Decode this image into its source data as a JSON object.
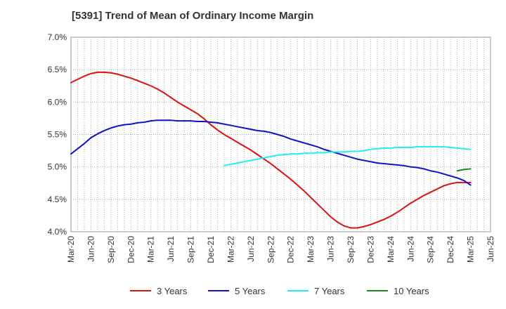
{
  "chart_data": {
    "type": "line",
    "title": "[5391]  Trend of Mean of Ordinary Income Margin",
    "xlabel": "",
    "ylabel": "",
    "x_ticks": [
      "Mar-20",
      "Jun-20",
      "Sep-20",
      "Dec-20",
      "Mar-21",
      "Jun-21",
      "Sep-21",
      "Dec-21",
      "Mar-22",
      "Jun-22",
      "Sep-22",
      "Dec-22",
      "Mar-23",
      "Jun-23",
      "Sep-23",
      "Dec-23",
      "Mar-24",
      "Jun-24",
      "Sep-24",
      "Dec-24",
      "Mar-25",
      "Jun-25"
    ],
    "y_ticks": [
      "4.0%",
      "4.5%",
      "5.0%",
      "5.5%",
      "6.0%",
      "6.5%",
      "7.0%"
    ],
    "ylim": [
      4.0,
      7.0
    ],
    "grid": "dotted",
    "legend_position": "bottom",
    "series": [
      {
        "name": "3 Years",
        "color": "#dd1111",
        "points": [
          [
            "Mar-20",
            6.3
          ],
          [
            "Apr-20",
            6.35
          ],
          [
            "May-20",
            6.4
          ],
          [
            "Jun-20",
            6.44
          ],
          [
            "Jul-20",
            6.46
          ],
          [
            "Aug-20",
            6.46
          ],
          [
            "Sep-20",
            6.45
          ],
          [
            "Oct-20",
            6.43
          ],
          [
            "Nov-20",
            6.4
          ],
          [
            "Dec-20",
            6.37
          ],
          [
            "Jan-21",
            6.33
          ],
          [
            "Feb-21",
            6.29
          ],
          [
            "Mar-21",
            6.25
          ],
          [
            "Apr-21",
            6.2
          ],
          [
            "May-21",
            6.14
          ],
          [
            "Jun-21",
            6.07
          ],
          [
            "Jul-21",
            6.0
          ],
          [
            "Aug-21",
            5.94
          ],
          [
            "Sep-21",
            5.88
          ],
          [
            "Oct-21",
            5.82
          ],
          [
            "Nov-21",
            5.74
          ],
          [
            "Dec-21",
            5.65
          ],
          [
            "Jan-22",
            5.57
          ],
          [
            "Feb-22",
            5.5
          ],
          [
            "Mar-22",
            5.44
          ],
          [
            "Apr-22",
            5.38
          ],
          [
            "May-22",
            5.32
          ],
          [
            "Jun-22",
            5.26
          ],
          [
            "Jul-22",
            5.19
          ],
          [
            "Aug-22",
            5.12
          ],
          [
            "Sep-22",
            5.05
          ],
          [
            "Oct-22",
            4.97
          ],
          [
            "Nov-22",
            4.89
          ],
          [
            "Dec-22",
            4.81
          ],
          [
            "Jan-23",
            4.72
          ],
          [
            "Feb-23",
            4.63
          ],
          [
            "Mar-23",
            4.53
          ],
          [
            "Apr-23",
            4.43
          ],
          [
            "May-23",
            4.33
          ],
          [
            "Jun-23",
            4.23
          ],
          [
            "Jul-23",
            4.15
          ],
          [
            "Aug-23",
            4.09
          ],
          [
            "Sep-23",
            4.06
          ],
          [
            "Oct-23",
            4.06
          ],
          [
            "Nov-23",
            4.08
          ],
          [
            "Dec-23",
            4.11
          ],
          [
            "Jan-24",
            4.15
          ],
          [
            "Feb-24",
            4.19
          ],
          [
            "Mar-24",
            4.24
          ],
          [
            "Apr-24",
            4.3
          ],
          [
            "May-24",
            4.37
          ],
          [
            "Jun-24",
            4.44
          ],
          [
            "Jul-24",
            4.5
          ],
          [
            "Aug-24",
            4.56
          ],
          [
            "Sep-24",
            4.61
          ],
          [
            "Oct-24",
            4.66
          ],
          [
            "Nov-24",
            4.71
          ],
          [
            "Dec-24",
            4.74
          ],
          [
            "Jan-25",
            4.76
          ],
          [
            "Feb-25",
            4.76
          ],
          [
            "Mar-25",
            4.76
          ]
        ]
      },
      {
        "name": "5 Years",
        "color": "#1111cc",
        "points": [
          [
            "Mar-20",
            5.2
          ],
          [
            "Apr-20",
            5.28
          ],
          [
            "May-20",
            5.36
          ],
          [
            "Jun-20",
            5.45
          ],
          [
            "Jul-20",
            5.51
          ],
          [
            "Aug-20",
            5.56
          ],
          [
            "Sep-20",
            5.6
          ],
          [
            "Oct-20",
            5.63
          ],
          [
            "Nov-20",
            5.65
          ],
          [
            "Dec-20",
            5.66
          ],
          [
            "Jan-21",
            5.68
          ],
          [
            "Feb-21",
            5.69
          ],
          [
            "Mar-21",
            5.71
          ],
          [
            "Apr-21",
            5.72
          ],
          [
            "May-21",
            5.72
          ],
          [
            "Jun-21",
            5.72
          ],
          [
            "Jul-21",
            5.71
          ],
          [
            "Aug-21",
            5.71
          ],
          [
            "Sep-21",
            5.71
          ],
          [
            "Oct-21",
            5.7
          ],
          [
            "Nov-21",
            5.7
          ],
          [
            "Dec-21",
            5.69
          ],
          [
            "Jan-22",
            5.68
          ],
          [
            "Feb-22",
            5.66
          ],
          [
            "Mar-22",
            5.64
          ],
          [
            "Apr-22",
            5.62
          ],
          [
            "May-22",
            5.6
          ],
          [
            "Jun-22",
            5.58
          ],
          [
            "Jul-22",
            5.56
          ],
          [
            "Aug-22",
            5.55
          ],
          [
            "Sep-22",
            5.53
          ],
          [
            "Oct-22",
            5.5
          ],
          [
            "Nov-22",
            5.47
          ],
          [
            "Dec-22",
            5.43
          ],
          [
            "Jan-23",
            5.4
          ],
          [
            "Feb-23",
            5.37
          ],
          [
            "Mar-23",
            5.34
          ],
          [
            "Apr-23",
            5.31
          ],
          [
            "May-23",
            5.27
          ],
          [
            "Jun-23",
            5.24
          ],
          [
            "Jul-23",
            5.21
          ],
          [
            "Aug-23",
            5.18
          ],
          [
            "Sep-23",
            5.15
          ],
          [
            "Oct-23",
            5.12
          ],
          [
            "Nov-23",
            5.1
          ],
          [
            "Dec-23",
            5.08
          ],
          [
            "Jan-24",
            5.06
          ],
          [
            "Feb-24",
            5.05
          ],
          [
            "Mar-24",
            5.04
          ],
          [
            "Apr-24",
            5.03
          ],
          [
            "May-24",
            5.02
          ],
          [
            "Jun-24",
            5.0
          ],
          [
            "Jul-24",
            4.99
          ],
          [
            "Aug-24",
            4.97
          ],
          [
            "Sep-24",
            4.94
          ],
          [
            "Oct-24",
            4.92
          ],
          [
            "Nov-24",
            4.89
          ],
          [
            "Dec-24",
            4.86
          ],
          [
            "Jan-25",
            4.83
          ],
          [
            "Feb-25",
            4.79
          ],
          [
            "Mar-25",
            4.72
          ]
        ]
      },
      {
        "name": "7 Years",
        "color": "#22eeee",
        "points": [
          [
            "Feb-22",
            5.02
          ],
          [
            "Mar-22",
            5.04
          ],
          [
            "Apr-22",
            5.06
          ],
          [
            "May-22",
            5.08
          ],
          [
            "Jun-22",
            5.1
          ],
          [
            "Jul-22",
            5.12
          ],
          [
            "Aug-22",
            5.14
          ],
          [
            "Sep-22",
            5.16
          ],
          [
            "Oct-22",
            5.18
          ],
          [
            "Nov-22",
            5.19
          ],
          [
            "Dec-22",
            5.2
          ],
          [
            "Jan-23",
            5.2
          ],
          [
            "Feb-23",
            5.21
          ],
          [
            "Mar-23",
            5.21
          ],
          [
            "Apr-23",
            5.22
          ],
          [
            "May-23",
            5.22
          ],
          [
            "Jun-23",
            5.23
          ],
          [
            "Jul-23",
            5.23
          ],
          [
            "Aug-23",
            5.23
          ],
          [
            "Sep-23",
            5.24
          ],
          [
            "Oct-23",
            5.24
          ],
          [
            "Nov-23",
            5.25
          ],
          [
            "Dec-23",
            5.27
          ],
          [
            "Jan-24",
            5.28
          ],
          [
            "Feb-24",
            5.29
          ],
          [
            "Mar-24",
            5.29
          ],
          [
            "Apr-24",
            5.3
          ],
          [
            "May-24",
            5.3
          ],
          [
            "Jun-24",
            5.3
          ],
          [
            "Jul-24",
            5.31
          ],
          [
            "Aug-24",
            5.31
          ],
          [
            "Sep-24",
            5.31
          ],
          [
            "Oct-24",
            5.31
          ],
          [
            "Nov-24",
            5.31
          ],
          [
            "Dec-24",
            5.3
          ],
          [
            "Jan-25",
            5.29
          ],
          [
            "Feb-25",
            5.28
          ],
          [
            "Mar-25",
            5.27
          ]
        ]
      },
      {
        "name": "10 Years",
        "color": "#228822",
        "points": [
          [
            "Jan-25",
            4.94
          ],
          [
            "Feb-25",
            4.96
          ],
          [
            "Mar-25",
            4.97
          ]
        ]
      }
    ]
  }
}
